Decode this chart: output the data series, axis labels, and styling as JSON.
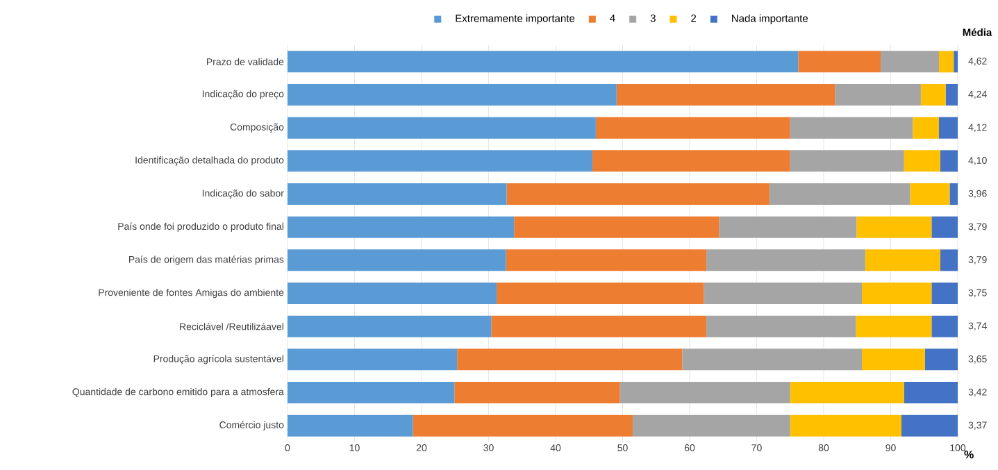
{
  "chart_data": {
    "type": "bar",
    "orientation": "horizontal",
    "stacked": true,
    "xlabel": "%",
    "categories": [
      "Prazo de validade",
      "Indicação do preço",
      "Composição",
      "Identificação detalhada do produto",
      "Indicação do sabor",
      "País onde foi produzido o produto final",
      "País de origem das matérias primas",
      "Proveniente de fontes Amigas do ambiente",
      "Reciclável /Reutilizáavel",
      "Produção agrícola sustentável",
      "Quantidade de carbono emitido para a atmosfera",
      "Comércio justo"
    ],
    "series": [
      {
        "name": "Extremamente importante",
        "color": "#5b9bd5",
        "values": [
          76.2,
          49.1,
          46,
          45.5,
          32.7,
          33.8,
          32.6,
          31.2,
          30.4,
          25.3,
          24.9,
          18.7
        ]
      },
      {
        "name": "4",
        "color": "#ed7d31",
        "values": [
          12.3,
          32.6,
          29,
          29.5,
          39.2,
          30.6,
          29.9,
          30.9,
          32.1,
          33.6,
          24.7,
          32.8
        ]
      },
      {
        "name": "3",
        "color": "#a5a5a5",
        "values": [
          8.7,
          12.8,
          18.3,
          17,
          21,
          20.5,
          23.7,
          23.6,
          22.3,
          26.8,
          25.4,
          23.5
        ]
      },
      {
        "name": "2",
        "color": "#ffc000",
        "values": [
          2.2,
          3.7,
          3.9,
          5.4,
          5.9,
          11.2,
          11.2,
          10.4,
          11.3,
          9.4,
          17,
          16.6
        ]
      },
      {
        "name": "Nada importante",
        "color": "#4472c4",
        "values": [
          0.6,
          1.8,
          2.8,
          2.6,
          1.2,
          3.9,
          2.6,
          3.9,
          3.9,
          4.9,
          8,
          8.4
        ]
      }
    ],
    "xlim": [
      0,
      100
    ],
    "xticks": [
      0,
      10,
      20,
      30,
      40,
      50,
      60,
      70,
      80,
      90,
      100
    ],
    "grid": "x",
    "legend": "top",
    "annotations": [
      "Média",
      "4,62",
      "4,24",
      "4,12",
      "4,10",
      "3,96",
      "3,79",
      "3,79",
      "3,75",
      "3,74",
      "3,65",
      "3,42",
      "3,37"
    ]
  }
}
